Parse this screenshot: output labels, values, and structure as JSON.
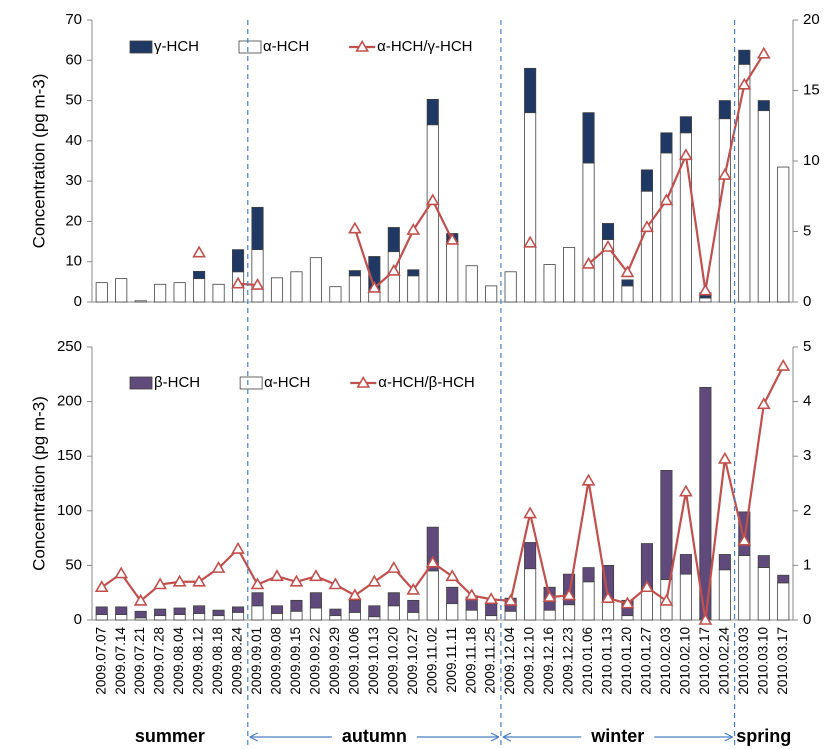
{
  "chart_data": [
    {
      "type": "combo",
      "y_label": "Concentration (pg m-3)",
      "ylim": [
        0,
        70
      ],
      "yticks": [
        0,
        10,
        20,
        30,
        40,
        50,
        60,
        70
      ],
      "y2lim": [
        0,
        20
      ],
      "y2ticks": [
        0,
        5,
        10,
        15,
        20
      ],
      "grid": false,
      "legend": "upper left",
      "series": [
        {
          "name": "γ-HCH",
          "kind": "bar",
          "color": "#1f3864",
          "values": [
            null,
            null,
            null,
            null,
            null,
            1.8,
            null,
            5.5,
            10.5,
            null,
            null,
            null,
            null,
            1.3,
            8.8,
            6,
            1.5,
            6.3,
            2,
            null,
            null,
            null,
            11,
            null,
            null,
            12.5,
            4,
            1.5,
            5.3,
            5,
            4,
            1.3,
            4.5,
            3.5,
            2.5,
            null
          ]
        },
        {
          "name": "α-HCH",
          "kind": "bar",
          "color": "#ffffff",
          "values": [
            4.8,
            5.8,
            0.3,
            4.4,
            4.8,
            5.8,
            4.4,
            7.5,
            13,
            6,
            7.5,
            11,
            3.8,
            6.5,
            2.5,
            12.5,
            6.5,
            44,
            15,
            9,
            4,
            7.5,
            47,
            9.3,
            13.5,
            34.5,
            15.5,
            4,
            27.5,
            37,
            42,
            1,
            45.5,
            59,
            47.5,
            33.5
          ]
        },
        {
          "name": "α-HCH/γ-HCH",
          "kind": "line",
          "axis": "y2",
          "color": "#c0504d",
          "values": [
            null,
            null,
            null,
            null,
            null,
            3.5,
            null,
            1.3,
            1.2,
            null,
            null,
            null,
            null,
            5.2,
            1.0,
            2.2,
            5.1,
            7.2,
            4.4,
            null,
            null,
            null,
            4.2,
            null,
            null,
            2.7,
            3.9,
            2.1,
            5.3,
            7.2,
            10.4,
            0.8,
            9,
            15.4,
            17.6,
            null
          ]
        }
      ]
    },
    {
      "type": "combo",
      "y_label": "Concentration (pg m-3)",
      "ylim": [
        0,
        250
      ],
      "yticks": [
        0,
        50,
        100,
        150,
        200,
        250
      ],
      "y2lim": [
        0,
        5
      ],
      "y2ticks": [
        0,
        1,
        2,
        3,
        4,
        5
      ],
      "grid": false,
      "legend": "upper left",
      "categories": [
        "2009.07.07",
        "2009.07.14",
        "2009.07.21",
        "2009.07.28",
        "2009.08.04",
        "2009.08.12",
        "2009.08.18",
        "2009.08.24",
        "2009.09.01",
        "2009.09.08",
        "2009.09.15",
        "2009.09.22",
        "2009.09.29",
        "2009.10.06",
        "2009.10.13",
        "2009.10.20",
        "2009.10.27",
        "2009.11.02",
        "2009.11.11",
        "2009.11.18",
        "2009.11.25",
        "2009.12.04",
        "2009.12.10",
        "2009.12.16",
        "2009.12.23",
        "2010.01.06",
        "2010.01.13",
        "2010.01.20",
        "2010.01.27",
        "2010.02.03",
        "2010.02.10",
        "2010.02.17",
        "2010.02.24",
        "2010.03.03",
        "2010.03.10",
        "2010.03.17"
      ],
      "series": [
        {
          "name": "β-HCH",
          "kind": "bar",
          "color": "#604a7b",
          "values": [
            7,
            7,
            6,
            6,
            6,
            7,
            5,
            5,
            12,
            7,
            10,
            14,
            6,
            11,
            10,
            12,
            11,
            40,
            15,
            12,
            11,
            12,
            24,
            21,
            28,
            13,
            34,
            14,
            42,
            100,
            18,
            212,
            14,
            40,
            11,
            7
          ]
        },
        {
          "name": "α-HCH",
          "kind": "bar",
          "color": "#ffffff",
          "values": [
            5,
            5,
            2,
            4,
            5,
            6,
            4,
            7,
            13,
            6,
            8,
            11,
            4,
            7,
            3,
            13,
            7,
            45,
            15,
            9,
            4,
            8,
            47,
            9,
            14,
            35,
            16,
            4,
            28,
            37,
            42,
            1,
            46,
            59,
            48,
            34
          ]
        },
        {
          "name": "α-HCH/β-HCH",
          "kind": "line",
          "axis": "y2",
          "color": "#c0504d",
          "values": [
            0.6,
            0.85,
            0.35,
            0.65,
            0.7,
            0.7,
            0.95,
            1.3,
            0.65,
            0.8,
            0.7,
            0.8,
            0.65,
            0.45,
            0.7,
            0.95,
            0.55,
            1.05,
            0.8,
            0.45,
            0.38,
            0.35,
            1.95,
            0.42,
            0.45,
            2.55,
            0.4,
            0.3,
            0.6,
            0.35,
            2.35,
            0,
            2.95,
            1.45,
            3.95,
            4.65
          ]
        }
      ],
      "periods": [
        {
          "label": "summer",
          "from": "2009.07.07",
          "to": "2009.08.24"
        },
        {
          "label": "autumn",
          "from": "2009.09.01",
          "to": "2009.11.25"
        },
        {
          "label": "winter",
          "from": "2009.12.04",
          "to": "2010.02.24"
        },
        {
          "label": "spring",
          "from": "2010.03.03",
          "to": "2010.03.17"
        }
      ]
    }
  ]
}
